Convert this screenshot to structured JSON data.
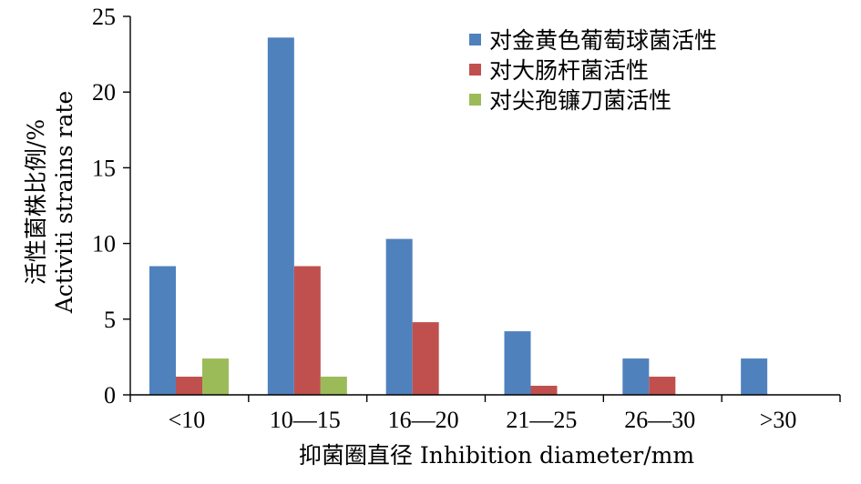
{
  "chart_data": {
    "type": "bar",
    "title": "",
    "xlabel": "抑菌圈直径 Inhibition diameter/mm",
    "ylabel_lines": [
      "活性菌株比例/%",
      "Activiti strains rate"
    ],
    "categories": [
      "<10",
      "10—15",
      "16—20",
      "21—25",
      "26—30",
      ">30"
    ],
    "ylim": [
      0,
      25
    ],
    "yticks": [
      0,
      5,
      10,
      15,
      20,
      25
    ],
    "grid": false,
    "legend_position": "top-right",
    "series": [
      {
        "name": "对金黄色葡萄球菌活性",
        "color": "#4f81bd",
        "values": [
          8.5,
          23.6,
          10.3,
          4.2,
          2.4,
          2.4
        ]
      },
      {
        "name": "对大肠杆菌活性",
        "color": "#c0504d",
        "values": [
          1.2,
          8.5,
          4.8,
          0.6,
          1.2,
          0
        ]
      },
      {
        "name": "对尖孢镰刀菌活性",
        "color": "#9bbb59",
        "values": [
          2.4,
          1.2,
          0,
          0,
          0,
          0
        ]
      }
    ]
  }
}
